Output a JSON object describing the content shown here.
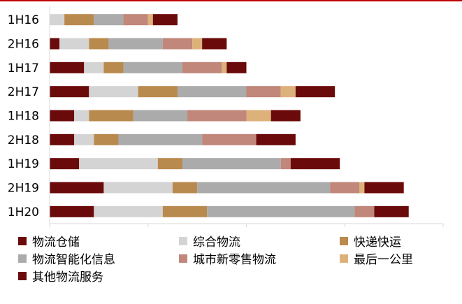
{
  "chart_data": {
    "type": "bar",
    "orientation": "horizontal",
    "stacked": true,
    "title": "",
    "xlabel": "",
    "ylabel": "",
    "xlim": [
      0,
      80
    ],
    "x_ticks": [
      0,
      20,
      40,
      60,
      80
    ],
    "grid": false,
    "legend_position": "bottom",
    "categories": [
      "1H16",
      "2H16",
      "1H17",
      "2H17",
      "1H18",
      "2H18",
      "1H19",
      "2H19",
      "1H20"
    ],
    "series": [
      {
        "name": "物流仓储",
        "color": "#6b0a0a",
        "values": [
          0,
          2,
          7,
          8,
          5,
          5,
          6,
          11,
          9
        ]
      },
      {
        "name": "综合物流",
        "color": "#d4d4d4",
        "values": [
          3,
          6,
          4,
          10,
          3,
          4,
          16,
          14,
          14
        ]
      },
      {
        "name": "快递快运",
        "color": "#b98a4e",
        "values": [
          6,
          4,
          4,
          8,
          9,
          5,
          5,
          5,
          9
        ]
      },
      {
        "name": "物流智能化信息",
        "color": "#ababab",
        "values": [
          6,
          11,
          12,
          14,
          11,
          17,
          20,
          27,
          30
        ]
      },
      {
        "name": "城市新零售物流",
        "color": "#c0877a",
        "values": [
          5,
          6,
          8,
          7,
          12,
          11,
          2,
          6,
          4
        ]
      },
      {
        "name": "最后一公里",
        "color": "#ddb27a",
        "values": [
          1,
          2,
          1,
          3,
          5,
          0,
          0,
          1,
          0
        ]
      },
      {
        "name": "其他物流服务",
        "color": "#6b0a0a",
        "values": [
          5,
          5,
          4,
          8,
          6,
          8,
          10,
          8,
          7
        ]
      }
    ]
  },
  "colors": {
    "axis": "#d9d9d9",
    "frame": "#c00000"
  }
}
